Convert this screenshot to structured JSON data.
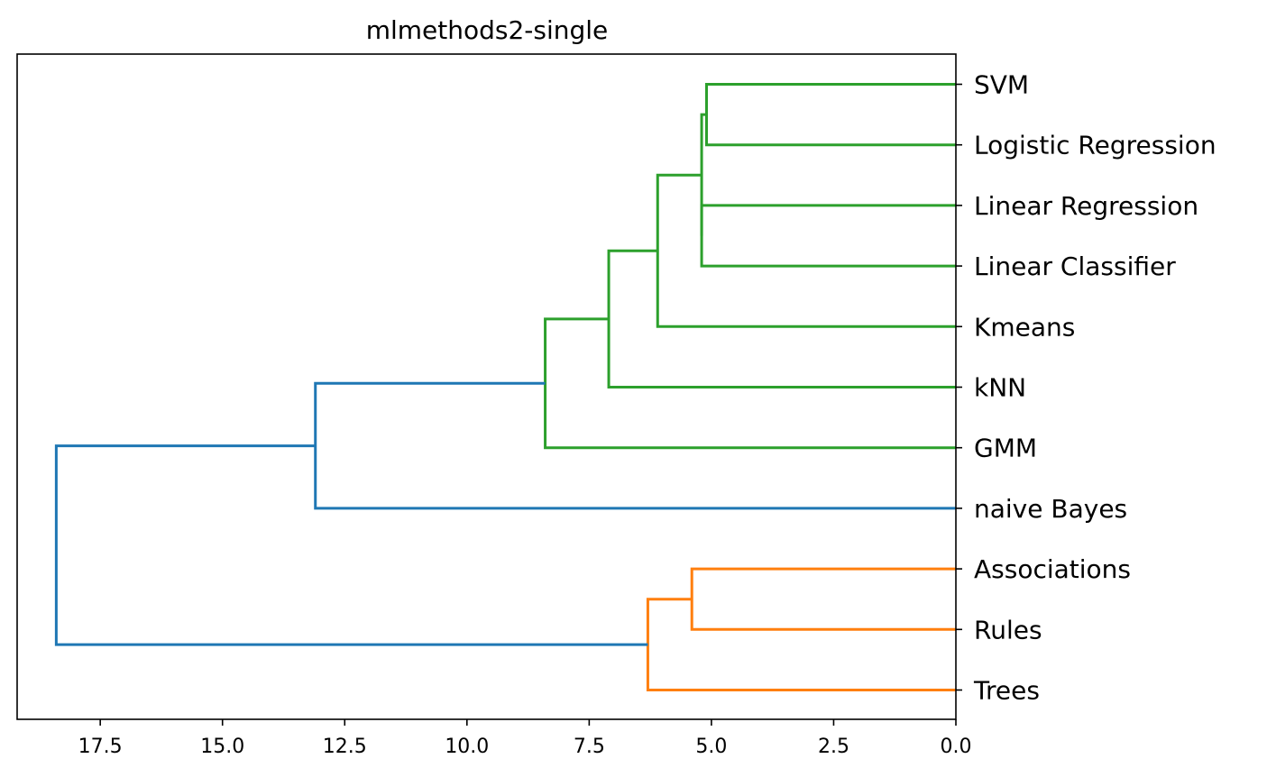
{
  "chart_data": {
    "type": "dendrogram",
    "title": "mlmethods2-single",
    "orientation": "left",
    "xlim": [
      19.2,
      0.0
    ],
    "xticks": [
      17.5,
      15.0,
      12.5,
      10.0,
      7.5,
      5.0,
      2.5,
      0.0
    ],
    "xtick_labels": [
      "17.5",
      "15.0",
      "12.5",
      "10.0",
      "7.5",
      "5.0",
      "2.5",
      "0.0"
    ],
    "leaves": [
      "SVM",
      "Logistic Regression",
      "Linear Regression",
      "Linear Classifier",
      "Kmeans",
      "kNN",
      "GMM",
      "naive Bayes",
      "Associations",
      "Rules",
      "Trees"
    ],
    "colors": {
      "cluster1": "#2ca02c",
      "cluster2": "#ff7f0e",
      "above_threshold": "#1f77b4"
    },
    "merges": [
      {
        "left": "SVM",
        "right": "Logistic Regression",
        "height": 5.1,
        "color": "cluster1"
      },
      {
        "left": "Linear Regression",
        "right": "Linear Classifier",
        "height": 5.2,
        "color": "cluster1"
      },
      {
        "left": "m0",
        "right": "m1",
        "height": 5.2,
        "color": "cluster1"
      },
      {
        "left": "m2",
        "right": "Kmeans",
        "height": 6.1,
        "color": "cluster1"
      },
      {
        "left": "m3",
        "right": "kNN",
        "height": 7.1,
        "color": "cluster1"
      },
      {
        "left": "m4",
        "right": "GMM",
        "height": 8.4,
        "color": "cluster1"
      },
      {
        "left": "m5",
        "right": "naive Bayes",
        "height": 13.1,
        "color": "above_threshold"
      },
      {
        "left": "Associations",
        "right": "Rules",
        "height": 5.4,
        "color": "cluster2"
      },
      {
        "left": "m7",
        "right": "Trees",
        "height": 6.3,
        "color": "cluster2"
      },
      {
        "left": "m6",
        "right": "m8",
        "height": 18.4,
        "color": "above_threshold"
      }
    ]
  }
}
